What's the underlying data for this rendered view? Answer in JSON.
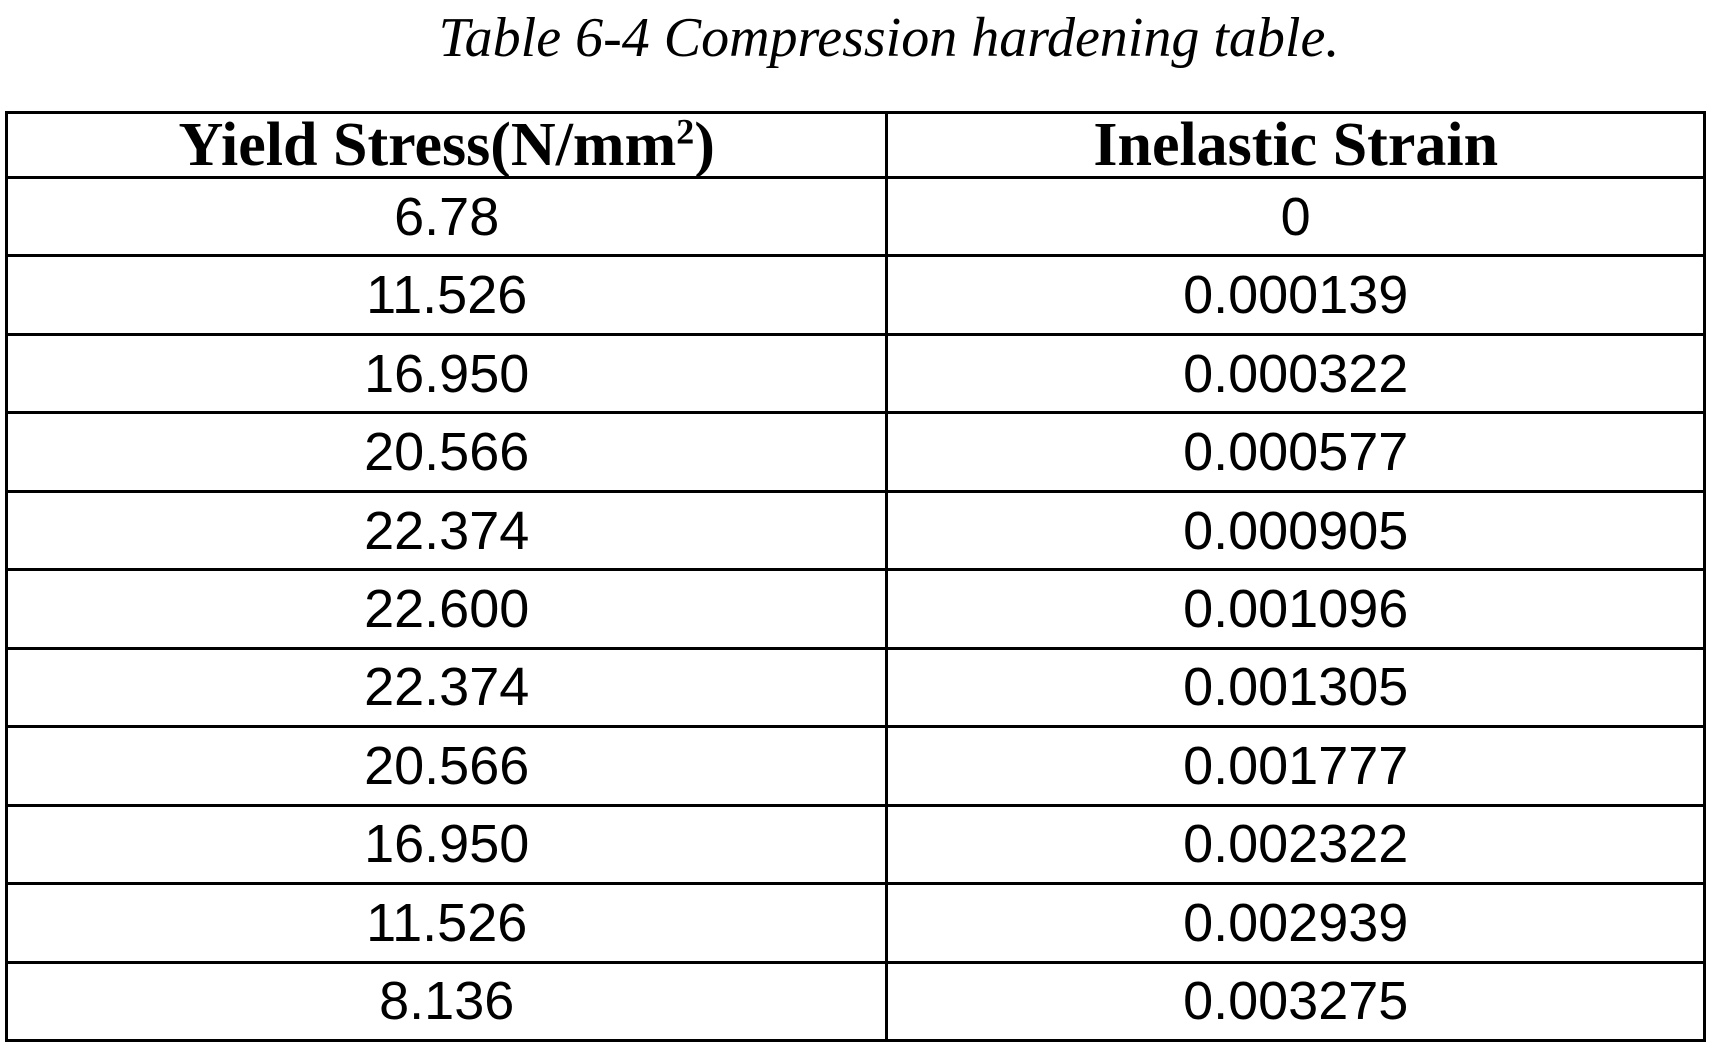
{
  "page": {
    "background_color": "#ffffff",
    "text_color": "#000000",
    "border_color": "#000000"
  },
  "caption": {
    "text": "Table 6-4 Compression hardening table."
  },
  "table": {
    "columns": [
      {
        "label": "Yield Stress(N/mm2)",
        "label_prefix": "Yield Stress(N/mm",
        "label_sup": "2",
        "label_suffix": ")"
      },
      {
        "label": "Inelastic Strain"
      }
    ],
    "rows": [
      {
        "yield_stress": "6.78",
        "inelastic_strain": "0"
      },
      {
        "yield_stress": "11.526",
        "inelastic_strain": "0.000139"
      },
      {
        "yield_stress": "16.950",
        "inelastic_strain": "0.000322"
      },
      {
        "yield_stress": "20.566",
        "inelastic_strain": "0.000577"
      },
      {
        "yield_stress": "22.374",
        "inelastic_strain": "0.000905"
      },
      {
        "yield_stress": "22.600",
        "inelastic_strain": "0.001096"
      },
      {
        "yield_stress": "22.374",
        "inelastic_strain": "0.001305"
      },
      {
        "yield_stress": "20.566",
        "inelastic_strain": "0.001777"
      },
      {
        "yield_stress": "16.950",
        "inelastic_strain": "0.002322"
      },
      {
        "yield_stress": "11.526",
        "inelastic_strain": "0.002939"
      },
      {
        "yield_stress": "8.136",
        "inelastic_strain": "0.003275"
      }
    ]
  }
}
